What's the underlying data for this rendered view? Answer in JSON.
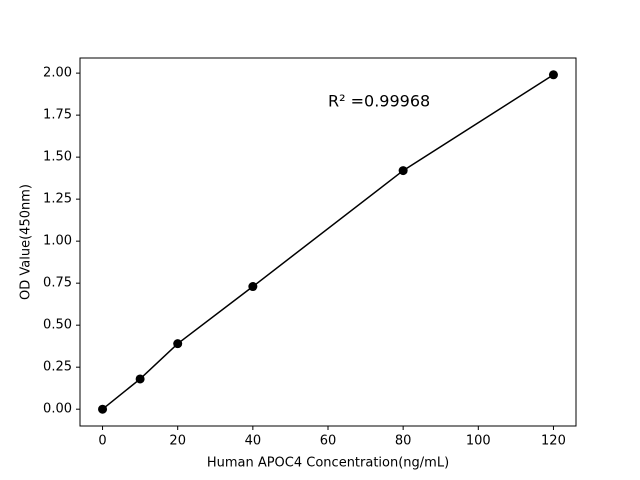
{
  "chart_data": {
    "type": "line",
    "x_label": "Human APOC4 Concentration(ng/mL)",
    "y_label": "OD Value(450nm)",
    "annotation": "R² =0.99968",
    "x": [
      0,
      10,
      20,
      40,
      80,
      120
    ],
    "series": [
      {
        "color": "#000000",
        "values": [
          0,
          0.18,
          0.39,
          0.73,
          1.42,
          1.99
        ]
      }
    ],
    "xlim": [
      -6,
      126
    ],
    "xticks": [
      0,
      20,
      40,
      60,
      80,
      100,
      120
    ],
    "ylim": [
      -0.1,
      2.09
    ],
    "yticks": [
      {
        "value": 0,
        "label": "0.00"
      },
      0.25,
      {
        "value": 0.5,
        "label": "0.50"
      },
      0.75,
      {
        "value": 1,
        "label": "1.00"
      },
      1.25,
      {
        "value": 1.5,
        "label": "1.50"
      },
      1.75,
      {
        "value": 2,
        "label": "2.00"
      }
    ],
    "grid": false
  }
}
